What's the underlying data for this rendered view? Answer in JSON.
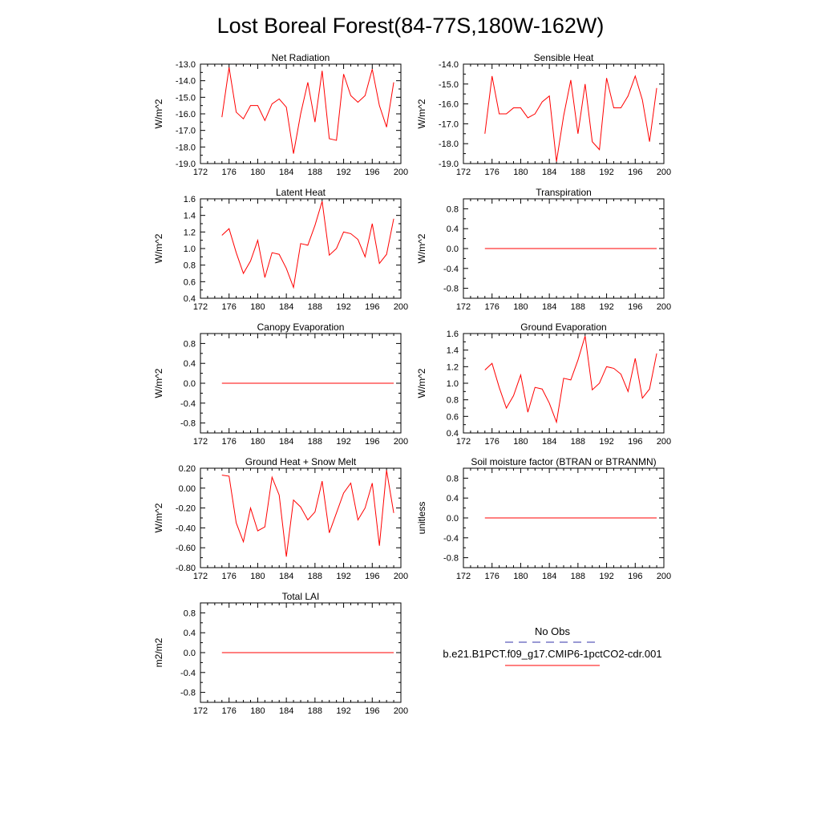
{
  "title": "Lost Boreal Forest(84-77S,180W-162W)",
  "legend": {
    "obs_label": "No Obs",
    "obs_color": "#3333aa",
    "model_label": "b.e21.B1PCT.f09_g17.CMIP6-1pctCO2-cdr.001",
    "model_color": "#ff0000"
  },
  "chart_data": [
    {
      "type": "line",
      "title": "Net Radiation",
      "ylabel": "W/m^2",
      "xlim": [
        172,
        200
      ],
      "ylim": [
        -19,
        -13
      ],
      "xticks": [
        "172",
        "176",
        "180",
        "184",
        "188",
        "192",
        "196",
        "200"
      ],
      "yticks": [
        "-19.0",
        "-18.0",
        "-17.0",
        "-16.0",
        "-15.0",
        "-14.0",
        "-13.0"
      ],
      "series": [
        {
          "color": "#ff0000",
          "x": [
            175,
            176,
            177,
            178,
            179,
            180,
            181,
            182,
            183,
            184,
            185,
            186,
            187,
            188,
            189,
            190,
            191,
            192,
            193,
            194,
            195,
            196,
            197,
            198,
            199
          ],
          "values": [
            -16.2,
            -13.2,
            -15.9,
            -16.3,
            -15.5,
            -15.5,
            -16.4,
            -15.4,
            -15.1,
            -15.6,
            -18.4,
            -16.0,
            -14.1,
            -16.5,
            -13.4,
            -17.5,
            -17.6,
            -13.6,
            -14.9,
            -15.3,
            -14.9,
            -13.3,
            -15.5,
            -16.8,
            -14.1
          ]
        }
      ]
    },
    {
      "type": "line",
      "title": "Sensible Heat",
      "ylabel": "W/m^2",
      "xlim": [
        172,
        200
      ],
      "ylim": [
        -19,
        -14
      ],
      "xticks": [
        "172",
        "176",
        "180",
        "184",
        "188",
        "192",
        "196",
        "200"
      ],
      "yticks": [
        "-19.0",
        "-18.0",
        "-17.0",
        "-16.0",
        "-15.0",
        "-14.0"
      ],
      "series": [
        {
          "color": "#ff0000",
          "x": [
            175,
            176,
            177,
            178,
            179,
            180,
            181,
            182,
            183,
            184,
            185,
            186,
            187,
            188,
            189,
            190,
            191,
            192,
            193,
            194,
            195,
            196,
            197,
            198,
            199
          ],
          "values": [
            -17.5,
            -14.6,
            -16.5,
            -16.5,
            -16.2,
            -16.2,
            -16.7,
            -16.5,
            -15.9,
            -15.6,
            -18.9,
            -16.6,
            -14.8,
            -17.5,
            -15.0,
            -17.9,
            -18.3,
            -14.7,
            -16.2,
            -16.2,
            -15.6,
            -14.6,
            -15.8,
            -17.9,
            -15.2
          ]
        }
      ]
    },
    {
      "type": "line",
      "title": "Latent Heat",
      "ylabel": "W/m^2",
      "xlim": [
        172,
        200
      ],
      "ylim": [
        0.4,
        1.6
      ],
      "xticks": [
        "172",
        "176",
        "180",
        "184",
        "188",
        "192",
        "196",
        "200"
      ],
      "yticks": [
        "0.4",
        "0.6",
        "0.8",
        "1.0",
        "1.2",
        "1.4",
        "1.6"
      ],
      "series": [
        {
          "color": "#ff0000",
          "x": [
            175,
            176,
            177,
            178,
            179,
            180,
            181,
            182,
            183,
            184,
            185,
            186,
            187,
            188,
            189,
            190,
            191,
            192,
            193,
            194,
            195,
            196,
            197,
            198,
            199
          ],
          "values": [
            1.16,
            1.24,
            0.95,
            0.7,
            0.85,
            1.1,
            0.65,
            0.95,
            0.93,
            0.76,
            0.53,
            1.06,
            1.04,
            1.28,
            1.57,
            0.92,
            1.0,
            1.2,
            1.18,
            1.11,
            0.9,
            1.3,
            0.82,
            0.93,
            1.36
          ]
        }
      ]
    },
    {
      "type": "line",
      "title": "Transpiration",
      "ylabel": "W/m^2",
      "xlim": [
        172,
        200
      ],
      "ylim": [
        -1,
        1
      ],
      "xticks": [
        "172",
        "176",
        "180",
        "184",
        "188",
        "192",
        "196",
        "200"
      ],
      "yticks": [
        "-0.8",
        "-0.4",
        "0.0",
        "0.4",
        "0.8"
      ],
      "series": [
        {
          "color": "#ff0000",
          "x": [
            175,
            176,
            177,
            178,
            179,
            180,
            181,
            182,
            183,
            184,
            185,
            186,
            187,
            188,
            189,
            190,
            191,
            192,
            193,
            194,
            195,
            196,
            197,
            198,
            199
          ],
          "values": [
            0,
            0,
            0,
            0,
            0,
            0,
            0,
            0,
            0,
            0,
            0,
            0,
            0,
            0,
            0,
            0,
            0,
            0,
            0,
            0,
            0,
            0,
            0,
            0,
            0
          ]
        }
      ]
    },
    {
      "type": "line",
      "title": "Canopy Evaporation",
      "ylabel": "W/m^2",
      "xlim": [
        172,
        200
      ],
      "ylim": [
        -1,
        1
      ],
      "xticks": [
        "172",
        "176",
        "180",
        "184",
        "188",
        "192",
        "196",
        "200"
      ],
      "yticks": [
        "-0.8",
        "-0.4",
        "0.0",
        "0.4",
        "0.8"
      ],
      "series": [
        {
          "color": "#ff0000",
          "x": [
            175,
            176,
            177,
            178,
            179,
            180,
            181,
            182,
            183,
            184,
            185,
            186,
            187,
            188,
            189,
            190,
            191,
            192,
            193,
            194,
            195,
            196,
            197,
            198,
            199
          ],
          "values": [
            0,
            0,
            0,
            0,
            0,
            0,
            0,
            0,
            0,
            0,
            0,
            0,
            0,
            0,
            0,
            0,
            0,
            0,
            0,
            0,
            0,
            0,
            0,
            0,
            0
          ]
        }
      ]
    },
    {
      "type": "line",
      "title": "Ground Evaporation",
      "ylabel": "W/m^2",
      "xlim": [
        172,
        200
      ],
      "ylim": [
        0.4,
        1.6
      ],
      "xticks": [
        "172",
        "176",
        "180",
        "184",
        "188",
        "192",
        "196",
        "200"
      ],
      "yticks": [
        "0.4",
        "0.6",
        "0.8",
        "1.0",
        "1.2",
        "1.4",
        "1.6"
      ],
      "series": [
        {
          "color": "#ff0000",
          "x": [
            175,
            176,
            177,
            178,
            179,
            180,
            181,
            182,
            183,
            184,
            185,
            186,
            187,
            188,
            189,
            190,
            191,
            192,
            193,
            194,
            195,
            196,
            197,
            198,
            199
          ],
          "values": [
            1.16,
            1.24,
            0.95,
            0.7,
            0.85,
            1.1,
            0.65,
            0.95,
            0.93,
            0.76,
            0.53,
            1.06,
            1.04,
            1.28,
            1.57,
            0.92,
            1.0,
            1.2,
            1.18,
            1.11,
            0.9,
            1.3,
            0.82,
            0.93,
            1.36
          ]
        }
      ]
    },
    {
      "type": "line",
      "title": "Ground Heat + Snow Melt",
      "ylabel": "W/m^2",
      "xlim": [
        172,
        200
      ],
      "ylim": [
        -0.8,
        0.2
      ],
      "xticks": [
        "172",
        "176",
        "180",
        "184",
        "188",
        "192",
        "196",
        "200"
      ],
      "yticks": [
        "-0.80",
        "-0.60",
        "-0.40",
        "-0.20",
        "0.00",
        "0.20"
      ],
      "series": [
        {
          "color": "#ff0000",
          "x": [
            175,
            176,
            177,
            178,
            179,
            180,
            181,
            182,
            183,
            184,
            185,
            186,
            187,
            188,
            189,
            190,
            191,
            192,
            193,
            194,
            195,
            196,
            197,
            198,
            199
          ],
          "values": [
            0.13,
            0.12,
            -0.35,
            -0.54,
            -0.2,
            -0.43,
            -0.39,
            0.11,
            -0.07,
            -0.69,
            -0.12,
            -0.19,
            -0.32,
            -0.24,
            0.07,
            -0.45,
            -0.25,
            -0.05,
            0.05,
            -0.32,
            -0.2,
            0.05,
            -0.58,
            0.18,
            -0.25
          ]
        }
      ]
    },
    {
      "type": "line",
      "title": "Soil moisture factor (BTRAN or BTRANMN)",
      "ylabel": "unitless",
      "xlim": [
        172,
        200
      ],
      "ylim": [
        -1,
        1
      ],
      "xticks": [
        "172",
        "176",
        "180",
        "184",
        "188",
        "192",
        "196",
        "200"
      ],
      "yticks": [
        "-0.8",
        "-0.4",
        "0.0",
        "0.4",
        "0.8"
      ],
      "series": [
        {
          "color": "#ff0000",
          "x": [
            175,
            176,
            177,
            178,
            179,
            180,
            181,
            182,
            183,
            184,
            185,
            186,
            187,
            188,
            189,
            190,
            191,
            192,
            193,
            194,
            195,
            196,
            197,
            198,
            199
          ],
          "values": [
            0,
            0,
            0,
            0,
            0,
            0,
            0,
            0,
            0,
            0,
            0,
            0,
            0,
            0,
            0,
            0,
            0,
            0,
            0,
            0,
            0,
            0,
            0,
            0,
            0
          ]
        }
      ]
    },
    {
      "type": "line",
      "title": "Total LAI",
      "ylabel": "m2/m2",
      "xlim": [
        172,
        200
      ],
      "ylim": [
        -1,
        1
      ],
      "xticks": [
        "172",
        "176",
        "180",
        "184",
        "188",
        "192",
        "196",
        "200"
      ],
      "yticks": [
        "-0.8",
        "-0.4",
        "0.0",
        "0.4",
        "0.8"
      ],
      "series": [
        {
          "color": "#ff0000",
          "x": [
            175,
            176,
            177,
            178,
            179,
            180,
            181,
            182,
            183,
            184,
            185,
            186,
            187,
            188,
            189,
            190,
            191,
            192,
            193,
            194,
            195,
            196,
            197,
            198,
            199
          ],
          "values": [
            0,
            0,
            0,
            0,
            0,
            0,
            0,
            0,
            0,
            0,
            0,
            0,
            0,
            0,
            0,
            0,
            0,
            0,
            0,
            0,
            0,
            0,
            0,
            0,
            0
          ]
        }
      ]
    }
  ]
}
